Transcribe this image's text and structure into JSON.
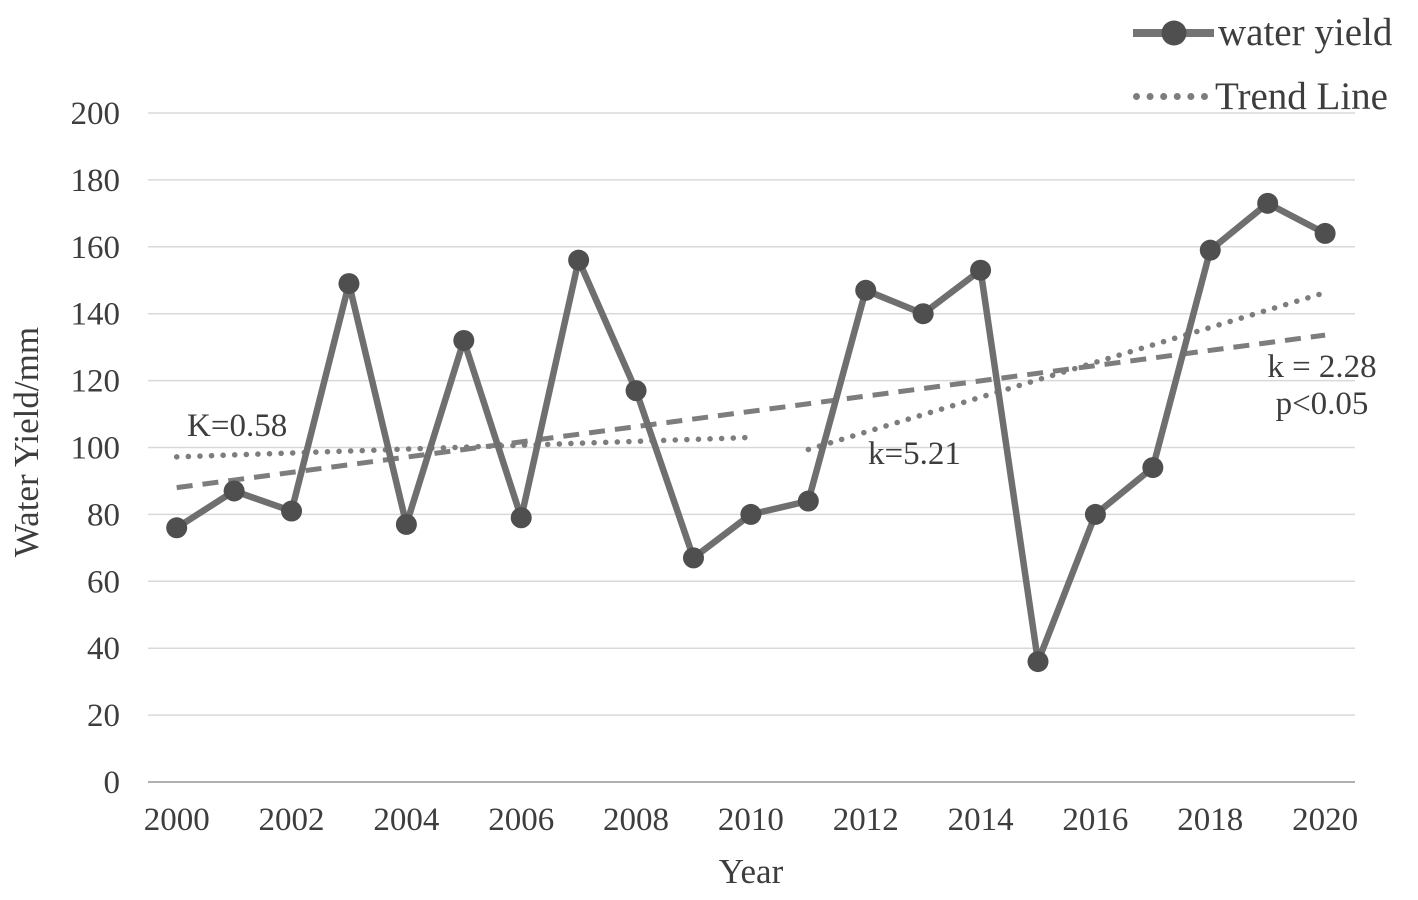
{
  "colors": {
    "background": "#ffffff",
    "series_line": "#6f6f6f",
    "marker": "#4f4f4f",
    "trend": "#7d7d7d",
    "gridline": "#d9d9d9",
    "axis_line": "#b0b0b0",
    "text": "#3d3d3d"
  },
  "legend": {
    "items": [
      {
        "label": "water yield",
        "style": "solid-line-with-circle-marker"
      },
      {
        "label": "Trend Line",
        "style": "dotted-line"
      }
    ]
  },
  "annotations": [
    {
      "text": "K=0.58"
    },
    {
      "text": "k=5.21"
    },
    {
      "text": "k = 2.28"
    },
    {
      "text": "p<0.05"
    }
  ],
  "chart_data": {
    "type": "line",
    "title": "",
    "xlabel": "Year",
    "ylabel": "Water Yield/mm",
    "x": [
      2000,
      2001,
      2002,
      2003,
      2004,
      2005,
      2006,
      2007,
      2008,
      2009,
      2010,
      2011,
      2012,
      2013,
      2014,
      2015,
      2016,
      2017,
      2018,
      2019,
      2020
    ],
    "series": [
      {
        "name": "water yield",
        "style": "solid-with-markers",
        "values": [
          76,
          87,
          81,
          149,
          77,
          132,
          79,
          156,
          117,
          67,
          80,
          84,
          147,
          140,
          153,
          36,
          80,
          94,
          159,
          173,
          164
        ]
      }
    ],
    "trend_lines": [
      {
        "name": "trend 2000-2010",
        "style": "dotted",
        "x_start": 2000,
        "x_end": 2010,
        "y_start": 97.2,
        "y_end": 103.0,
        "slope_label": "K=0.58"
      },
      {
        "name": "trend 2011-2020",
        "style": "dotted",
        "x_start": 2011,
        "x_end": 2020,
        "y_start": 99.4,
        "y_end": 146.3,
        "slope_label": "k=5.21"
      },
      {
        "name": "overall trend",
        "style": "dashed",
        "x_start": 2000,
        "x_end": 2020,
        "y_start": 88.0,
        "y_end": 133.6,
        "slope_label": "k = 2.28 p<0.05"
      }
    ],
    "ylim": [
      0,
      200
    ],
    "y_ticks": [
      0,
      20,
      40,
      60,
      80,
      100,
      120,
      140,
      160,
      180,
      200
    ],
    "x_ticks": [
      2000,
      2002,
      2004,
      2006,
      2008,
      2010,
      2012,
      2014,
      2016,
      2018,
      2020
    ],
    "grid": true,
    "legend_position": "top-right"
  }
}
